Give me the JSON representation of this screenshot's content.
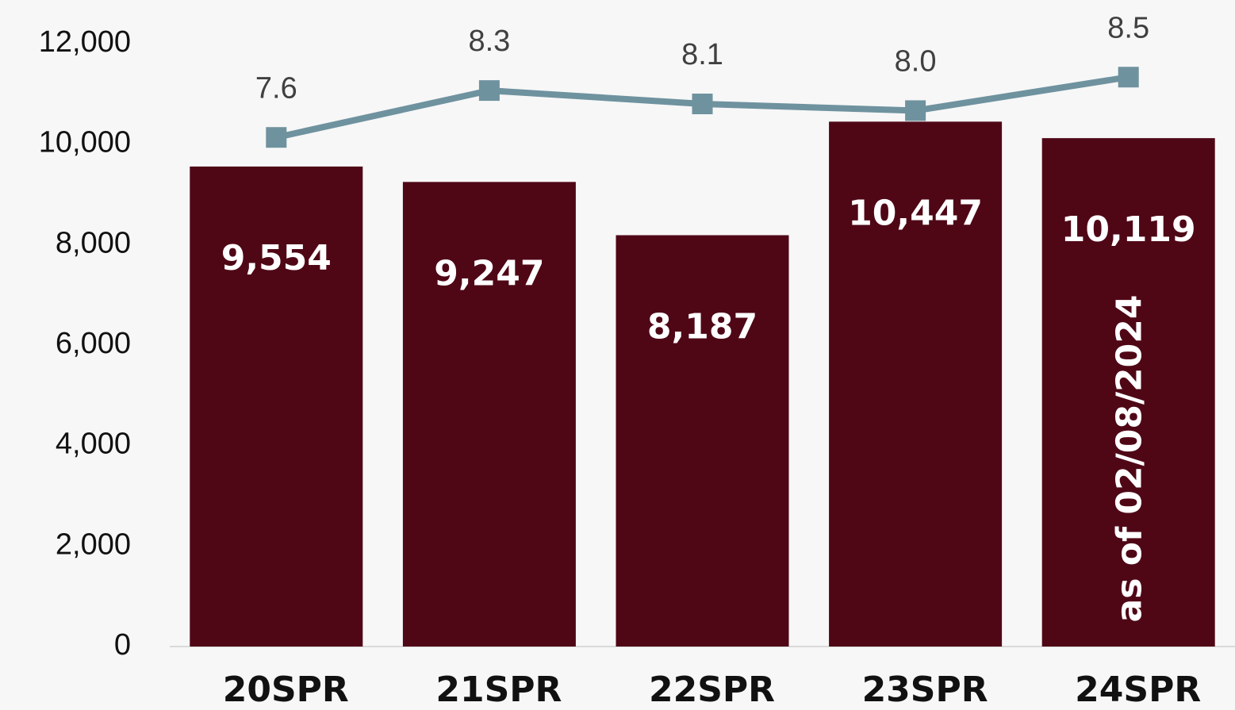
{
  "chart_data": {
    "type": "bar_line",
    "categories": [
      "20SPR",
      "21SPR",
      "22SPR",
      "23SPR",
      "24SPR"
    ],
    "series": [
      {
        "type": "bar",
        "color": "#4f0716",
        "values": [
          9554,
          9247,
          8187,
          10447,
          10119
        ],
        "value_labels": [
          "9,554",
          "9,247",
          "8,187",
          "10,447",
          "10,119"
        ]
      },
      {
        "type": "line",
        "axis": "y2",
        "color": "#6f929f",
        "values": [
          7.6,
          8.3,
          8.1,
          8.0,
          8.5
        ],
        "value_labels": [
          "7.6",
          "8.3",
          "8.1",
          "8.0",
          "8.5"
        ]
      }
    ],
    "ylim": [
      0,
      12000
    ],
    "yticks": [
      0,
      {
        "value": 2000,
        "label": "2,000"
      },
      {
        "value": 4000,
        "label": "4,000"
      },
      {
        "value": 6000,
        "label": "6,000"
      },
      {
        "value": 8000,
        "label": "8,000"
      },
      {
        "value": 10000,
        "label": "10,000"
      },
      {
        "value": 12000,
        "label": "12,000"
      }
    ],
    "y2lim": [
      0,
      9
    ],
    "annotation": "as of 02/08/2024",
    "grid": false
  }
}
